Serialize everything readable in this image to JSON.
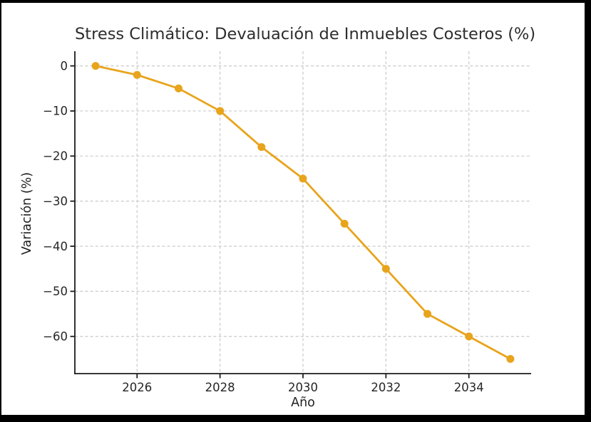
{
  "frame": {
    "border_color": "#000000",
    "canvas_background": "#ffffff"
  },
  "chart_data": {
    "type": "line",
    "title": "Stress Climático: Devaluación de Inmuebles Costeros (%)",
    "xlabel": "Año",
    "ylabel": "Variación (%)",
    "x": [
      2025,
      2026,
      2027,
      2028,
      2029,
      2030,
      2031,
      2032,
      2033,
      2034,
      2035
    ],
    "series": [
      {
        "values": [
          0,
          -2,
          -5,
          -10,
          -18,
          -25,
          -35,
          -45,
          -55,
          -60,
          -65
        ],
        "color": "#E8A41C",
        "marker": "circle",
        "line_width": 2.8,
        "marker_radius": 5.5
      }
    ],
    "xlim": [
      2024.5,
      2035.5
    ],
    "ylim": [
      -68.25,
      3.25
    ],
    "xticks": [
      2026,
      2028,
      2030,
      2032,
      2034
    ],
    "xtick_labels": [
      "2026",
      "2028",
      "2030",
      "2032",
      "2034"
    ],
    "yticks": [
      0,
      -10,
      -20,
      -30,
      -40,
      -50,
      -60
    ],
    "ytick_labels": [
      "0",
      "−10",
      "−20",
      "−30",
      "−40",
      "−50",
      "−60"
    ],
    "grid": true,
    "grid_style": "dashed",
    "legend": "none",
    "styles": {
      "grid_color": "#c9c9c9",
      "spine_color": "#1c1c1c",
      "tick_color": "#1c1c1c",
      "tick_label_color": "#262626",
      "tick_label_size": 16.5
    }
  }
}
